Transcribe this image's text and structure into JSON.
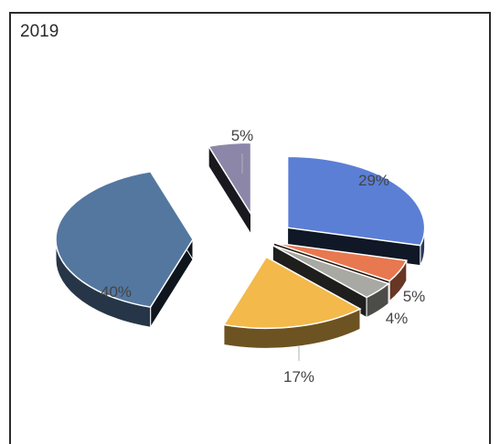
{
  "chart_data": {
    "type": "pie",
    "title": "2019",
    "values": [
      29,
      5,
      4,
      17,
      40,
      5
    ],
    "labels": [
      "29%",
      "5%",
      "4%",
      "17%",
      "40%",
      "5%"
    ],
    "colors": [
      "#5b7fd4",
      "#e8784f",
      "#a9a9a3",
      "#f3b94a",
      "#54779f",
      "#8c87a8"
    ],
    "exploded": true,
    "style": "3d"
  }
}
